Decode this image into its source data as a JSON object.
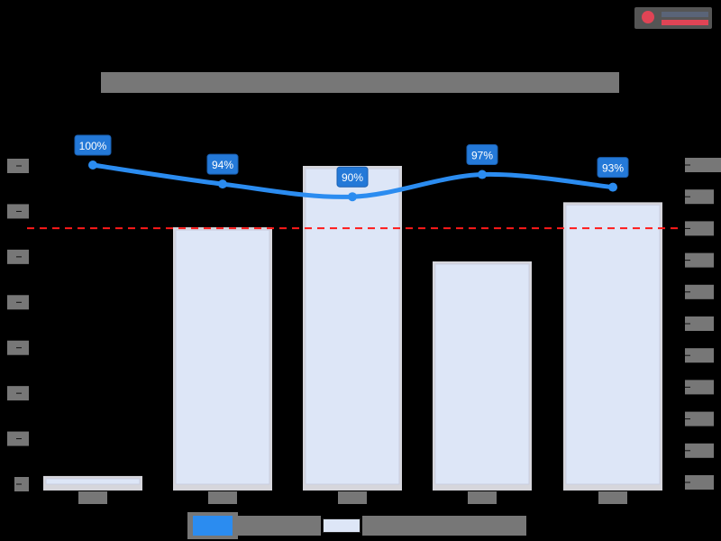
{
  "logo": {
    "icon": "brand-logo-icon",
    "colors": {
      "primary": "#e04455",
      "secondary": "#5a6478"
    }
  },
  "title": "",
  "colors": {
    "bar_fill": "#dde6f7",
    "bar_edge": "#c9cde0",
    "line": "#2b8cf0",
    "label_bg": "#2479d8",
    "label_text": "#ffffff",
    "reference_line": "#ff1a1a",
    "masked_text": "#777777"
  },
  "chart_data": {
    "type": "bar",
    "title": "",
    "xlabel": "",
    "ylabel": "",
    "ylabel_right": "",
    "categories": [
      "",
      "",
      "",
      "",
      ""
    ],
    "series": [
      {
        "name": "",
        "type": "bar",
        "axis": "left",
        "values": [
          18,
          565,
          700,
          490,
          620
        ]
      },
      {
        "name": "",
        "type": "line",
        "axis": "right",
        "values": [
          100,
          94,
          90,
          97,
          93
        ],
        "labels": [
          "100%",
          "94%",
          "90%",
          "97%",
          "93%"
        ]
      }
    ],
    "reference_line": {
      "axis": "left",
      "value": 563,
      "style": "dashed",
      "color": "#ff1a1a"
    },
    "left_axis": {
      "ylim": [
        0,
        700
      ],
      "ticks": 8
    },
    "right_axis": {
      "ylim": [
        0,
        100
      ],
      "ticks": 11,
      "unit": "%"
    },
    "grid": false,
    "legend": {
      "position": "bottom",
      "entries": [
        {
          "swatch": "#2b8cf0",
          "label": ""
        },
        {
          "swatch": "#dde6f7",
          "label": ""
        }
      ]
    }
  }
}
